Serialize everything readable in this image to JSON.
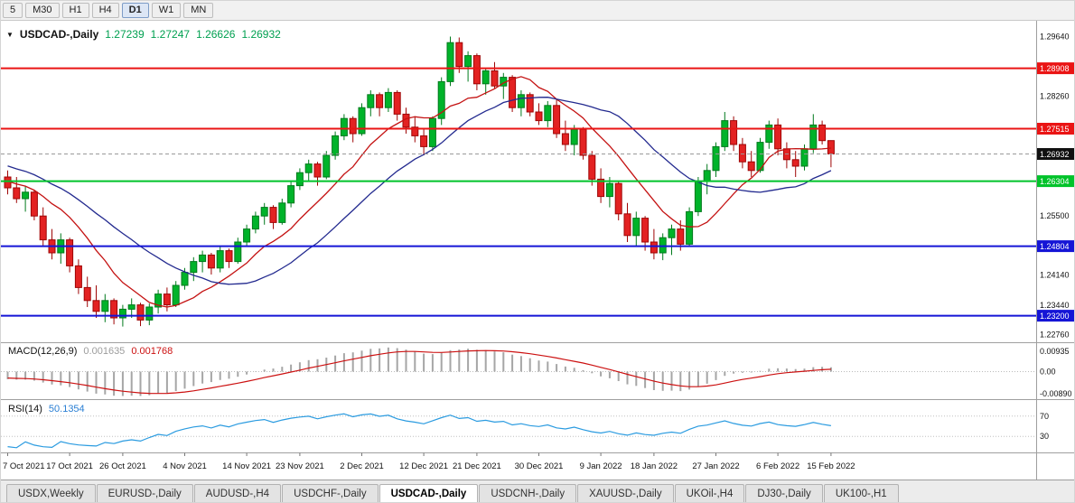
{
  "toolbar": {
    "timeframes": [
      {
        "label": "5",
        "active": false
      },
      {
        "label": "M30",
        "active": false
      },
      {
        "label": "H1",
        "active": false
      },
      {
        "label": "H4",
        "active": false
      },
      {
        "label": "D1",
        "active": true
      },
      {
        "label": "W1",
        "active": false
      },
      {
        "label": "MN",
        "active": false
      }
    ]
  },
  "chart_title": {
    "dropdown": "▼",
    "symbol": "USDCAD-,Daily",
    "open": "1.27239",
    "high": "1.27247",
    "low": "1.26626",
    "close": "1.26932"
  },
  "indicators": {
    "macd": {
      "name": "MACD(12,26,9)",
      "main_value": "0.001635",
      "signal_value": "0.001768",
      "axis_labels": [
        {
          "value": 0.00935,
          "label": "0.00935"
        },
        {
          "value": 0,
          "label": "0.00"
        },
        {
          "value": -0.0089,
          "label": "-0.00890"
        }
      ]
    },
    "rsi": {
      "name": "RSI(14)",
      "value": "50.1354",
      "levels": [
        {
          "value": 70,
          "label": "70"
        },
        {
          "value": 30,
          "label": "30"
        }
      ]
    }
  },
  "chart_data": {
    "type": "candlestick",
    "symbol": "USDCAD-,Daily",
    "timeframe": "Daily",
    "price_range": {
      "min": 1.2267,
      "max": 1.2988
    },
    "candle_colors": {
      "up_fill": "#00b32a",
      "up_stroke": "#007a1c",
      "down_fill": "#e32222",
      "down_stroke": "#9e0505"
    },
    "candles": [
      [
        1.264,
        1.2655,
        1.26,
        1.2615
      ],
      [
        1.2615,
        1.264,
        1.258,
        1.259
      ],
      [
        1.259,
        1.262,
        1.256,
        1.2605
      ],
      [
        1.2605,
        1.261,
        1.254,
        1.255
      ],
      [
        1.255,
        1.257,
        1.248,
        1.2495
      ],
      [
        1.2495,
        1.252,
        1.245,
        1.2465
      ],
      [
        1.2465,
        1.251,
        1.244,
        1.2495
      ],
      [
        1.2495,
        1.25,
        1.242,
        1.2435
      ],
      [
        1.2435,
        1.245,
        1.237,
        1.2385
      ],
      [
        1.2385,
        1.241,
        1.234,
        1.2355
      ],
      [
        1.2355,
        1.239,
        1.2315,
        1.233
      ],
      [
        1.233,
        1.237,
        1.2305,
        1.2355
      ],
      [
        1.2355,
        1.236,
        1.23,
        1.2315
      ],
      [
        1.2315,
        1.2345,
        1.2295,
        1.2335
      ],
      [
        1.2335,
        1.236,
        1.2315,
        1.2345
      ],
      [
        1.2345,
        1.235,
        1.2296,
        1.231
      ],
      [
        1.231,
        1.2348,
        1.2298,
        1.234
      ],
      [
        1.234,
        1.238,
        1.2325,
        1.237
      ],
      [
        1.237,
        1.2385,
        1.233,
        1.2345
      ],
      [
        1.2345,
        1.24,
        1.234,
        1.239
      ],
      [
        1.239,
        1.243,
        1.238,
        1.242
      ],
      [
        1.242,
        1.2455,
        1.24,
        1.2445
      ],
      [
        1.2445,
        1.247,
        1.242,
        1.246
      ],
      [
        1.246,
        1.2465,
        1.2415,
        1.243
      ],
      [
        1.243,
        1.248,
        1.242,
        1.247
      ],
      [
        1.247,
        1.2475,
        1.243,
        1.2445
      ],
      [
        1.2445,
        1.25,
        1.244,
        1.249
      ],
      [
        1.249,
        1.253,
        1.248,
        1.252
      ],
      [
        1.252,
        1.256,
        1.251,
        1.255
      ],
      [
        1.255,
        1.258,
        1.253,
        1.257
      ],
      [
        1.257,
        1.2575,
        1.252,
        1.2535
      ],
      [
        1.2535,
        1.259,
        1.253,
        1.258
      ],
      [
        1.258,
        1.263,
        1.257,
        1.262
      ],
      [
        1.262,
        1.266,
        1.261,
        1.265
      ],
      [
        1.265,
        1.268,
        1.263,
        1.267
      ],
      [
        1.267,
        1.2675,
        1.262,
        1.264
      ],
      [
        1.264,
        1.27,
        1.2635,
        1.269
      ],
      [
        1.269,
        1.2745,
        1.268,
        1.2735
      ],
      [
        1.2735,
        1.2785,
        1.2725,
        1.2775
      ],
      [
        1.2775,
        1.278,
        1.272,
        1.274
      ],
      [
        1.274,
        1.281,
        1.2735,
        1.28
      ],
      [
        1.28,
        1.284,
        1.278,
        1.283
      ],
      [
        1.283,
        1.2835,
        1.278,
        1.28
      ],
      [
        1.28,
        1.2845,
        1.279,
        1.2835
      ],
      [
        1.2835,
        1.284,
        1.277,
        1.2785
      ],
      [
        1.2785,
        1.28,
        1.274,
        1.2755
      ],
      [
        1.2755,
        1.278,
        1.272,
        1.2735
      ],
      [
        1.2735,
        1.275,
        1.269,
        1.271
      ],
      [
        1.271,
        1.278,
        1.27,
        1.2775
      ],
      [
        1.2775,
        1.287,
        1.276,
        1.286
      ],
      [
        1.286,
        1.2964,
        1.285,
        1.295
      ],
      [
        1.295,
        1.2962,
        1.288,
        1.2895
      ],
      [
        1.2895,
        1.293,
        1.286,
        1.292
      ],
      [
        1.292,
        1.2925,
        1.284,
        1.2855
      ],
      [
        1.2855,
        1.289,
        1.283,
        1.2885
      ],
      [
        1.2885,
        1.2905,
        1.2845,
        1.285
      ],
      [
        1.285,
        1.288,
        1.282,
        1.287
      ],
      [
        1.287,
        1.2875,
        1.279,
        1.28
      ],
      [
        1.28,
        1.284,
        1.278,
        1.283
      ],
      [
        1.283,
        1.2835,
        1.278,
        1.279
      ],
      [
        1.279,
        1.281,
        1.276,
        1.277
      ],
      [
        1.277,
        1.2815,
        1.2755,
        1.2805
      ],
      [
        1.2805,
        1.282,
        1.273,
        1.274
      ],
      [
        1.274,
        1.277,
        1.27,
        1.2715
      ],
      [
        1.2715,
        1.276,
        1.269,
        1.275
      ],
      [
        1.275,
        1.2755,
        1.268,
        1.269
      ],
      [
        1.269,
        1.27,
        1.262,
        1.2635
      ],
      [
        1.2635,
        1.266,
        1.258,
        1.2595
      ],
      [
        1.2595,
        1.264,
        1.257,
        1.2625
      ],
      [
        1.2625,
        1.263,
        1.254,
        1.2555
      ],
      [
        1.2555,
        1.258,
        1.249,
        1.2505
      ],
      [
        1.2505,
        1.256,
        1.248,
        1.2545
      ],
      [
        1.2545,
        1.255,
        1.247,
        1.249
      ],
      [
        1.249,
        1.252,
        1.245,
        1.2465
      ],
      [
        1.2465,
        1.251,
        1.2448,
        1.25
      ],
      [
        1.25,
        1.253,
        1.246,
        1.252
      ],
      [
        1.252,
        1.254,
        1.247,
        1.2485
      ],
      [
        1.2485,
        1.257,
        1.248,
        1.256
      ],
      [
        1.256,
        1.264,
        1.255,
        1.263
      ],
      [
        1.263,
        1.267,
        1.26,
        1.2655
      ],
      [
        1.2655,
        1.272,
        1.264,
        1.271
      ],
      [
        1.271,
        1.279,
        1.27,
        1.277
      ],
      [
        1.277,
        1.278,
        1.27,
        1.2715
      ],
      [
        1.2715,
        1.273,
        1.266,
        1.2675
      ],
      [
        1.2675,
        1.27,
        1.264,
        1.2655
      ],
      [
        1.2655,
        1.273,
        1.265,
        1.272
      ],
      [
        1.272,
        1.277,
        1.2705,
        1.276
      ],
      [
        1.276,
        1.2775,
        1.269,
        1.2705
      ],
      [
        1.2705,
        1.272,
        1.266,
        1.268
      ],
      [
        1.268,
        1.27,
        1.264,
        1.2665
      ],
      [
        1.2665,
        1.2715,
        1.2655,
        1.2705
      ],
      [
        1.2705,
        1.2785,
        1.2695,
        1.276
      ],
      [
        1.276,
        1.277,
        1.2715,
        1.2724
      ],
      [
        1.27239,
        1.27247,
        1.26626,
        1.26932
      ]
    ],
    "preamble_closes": [
      1.273,
      1.2723,
      1.2717,
      1.271,
      1.2704,
      1.2697,
      1.2691,
      1.2684,
      1.2678,
      1.2671,
      1.2665,
      1.2658,
      1.2652,
      1.2645,
      1.2639,
      1.2632,
      1.2626,
      1.2619,
      1.2613,
      1.2606
    ],
    "moving_averages": [
      {
        "period": 10,
        "color": "#c41212",
        "name": "ma-fast-red-line"
      },
      {
        "period": 21,
        "color": "#232a8f",
        "name": "ma-slow-navy-line"
      }
    ],
    "axis_labels": [
      {
        "price": 1.2964,
        "label": "1.29640"
      },
      {
        "price": 1.2826,
        "label": "1.28260"
      },
      {
        "price": 1.255,
        "label": "1.25500"
      },
      {
        "price": 1.2414,
        "label": "1.24140"
      },
      {
        "price": 1.2344,
        "label": "1.23440"
      },
      {
        "price": 1.2276,
        "label": "1.22760"
      }
    ],
    "hlines": [
      {
        "price": 1.28908,
        "label": "1.28908",
        "color": "#ea1414"
      },
      {
        "price": 1.27515,
        "label": "1.27515",
        "color": "#ea1414"
      },
      {
        "price": 1.26304,
        "label": "1.26304",
        "color": "#00c32a"
      },
      {
        "price": 1.24804,
        "label": "1.24804",
        "color": "#1515d6"
      },
      {
        "price": 1.232,
        "label": "1.23200",
        "color": "#1515d6"
      }
    ],
    "current_price": {
      "price": 1.26932,
      "label": "1.26932",
      "badge_color": "#101010"
    },
    "x_labels": [
      {
        "index": 0,
        "label": "7 Oct 2021"
      },
      {
        "index": 7,
        "label": "17 Oct 2021"
      },
      {
        "index": 13,
        "label": "26 Oct 2021"
      },
      {
        "index": 20,
        "label": "4 Nov 2021"
      },
      {
        "index": 27,
        "label": "14 Nov 2021"
      },
      {
        "index": 33,
        "label": "23 Nov 2021"
      },
      {
        "index": 40,
        "label": "2 Dec 2021"
      },
      {
        "index": 47,
        "label": "12 Dec 2021"
      },
      {
        "index": 53,
        "label": "21 Dec 2021"
      },
      {
        "index": 60,
        "label": "30 Dec 2021"
      },
      {
        "index": 67,
        "label": "9 Jan 2022"
      },
      {
        "index": 73,
        "label": "18 Jan 2022"
      },
      {
        "index": 80,
        "label": "27 Jan 2022"
      },
      {
        "index": 87,
        "label": "6 Feb 2022"
      },
      {
        "index": 93,
        "label": "15 Feb 2022"
      }
    ]
  },
  "tabs": [
    {
      "label": "USDX,Weekly",
      "active": false
    },
    {
      "label": "EURUSD-,Daily",
      "active": false
    },
    {
      "label": "AUDUSD-,H4",
      "active": false
    },
    {
      "label": "USDCHF-,Daily",
      "active": false
    },
    {
      "label": "USDCAD-,Daily",
      "active": true
    },
    {
      "label": "USDCNH-,Daily",
      "active": false
    },
    {
      "label": "XAUUSD-,Daily",
      "active": false
    },
    {
      "label": "UKOil-,H4",
      "active": false
    },
    {
      "label": "DJ30-,Daily",
      "active": false
    },
    {
      "label": "UK100-,H1",
      "active": false
    }
  ]
}
